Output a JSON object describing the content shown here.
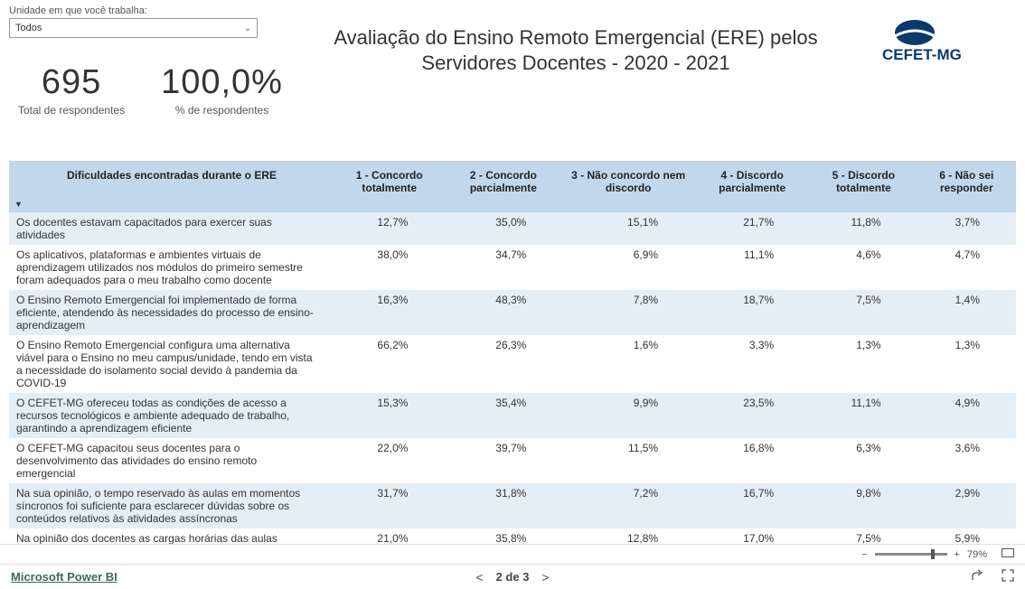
{
  "filter": {
    "label": "Unidade em que você trabalha:",
    "selected": "Todos"
  },
  "title": "Avaliação do Ensino Remoto Emergencial (ERE) pelos Servidores Docentes - 2020 - 2021",
  "logo_text": "CEFET-MG",
  "kpis": [
    {
      "value": "695",
      "label": "Total de respondentes"
    },
    {
      "value": "100,0%",
      "label": "% de respondentes"
    }
  ],
  "table": {
    "columns": [
      "Dificuldades encontradas durante o ERE",
      "1 - Concordo totalmente",
      "2 - Concordo parcialmente",
      "3 - Não concordo nem discordo",
      "4 - Discordo parcialmente",
      "5 - Discordo totalmente",
      "6 - Não sei responder"
    ],
    "rows": [
      {
        "q": "Os docentes estavam capacitados para exercer suas atividades",
        "v": [
          "12,7%",
          "35,0%",
          "15,1%",
          "21,7%",
          "11,8%",
          "3,7%"
        ]
      },
      {
        "q": "Os aplicativos, plataformas e ambientes virtuais de aprendizagem utilizados nos módulos do primeiro semestre foram adequados para o meu trabalho como docente",
        "v": [
          "38,0%",
          "34,7%",
          "6,9%",
          "11,1%",
          "4,6%",
          "4,7%"
        ]
      },
      {
        "q": "O Ensino Remoto Emergencial foi implementado de forma eficiente, atendendo às necessidades do processo de ensino-aprendizagem",
        "v": [
          "16,3%",
          "48,3%",
          "7,8%",
          "18,7%",
          "7,5%",
          "1,4%"
        ]
      },
      {
        "q": "O Ensino Remoto Emergencial configura uma alternativa viável para o Ensino no meu campus/unidade, tendo em vista a necessidade do isolamento social devido à pandemia da COVID-19",
        "v": [
          "66,2%",
          "26,3%",
          "1,6%",
          "3,3%",
          "1,3%",
          "1,3%"
        ]
      },
      {
        "q": "O CEFET-MG ofereceu todas as condições de acesso a recursos tecnológicos e ambiente adequado de trabalho, garantindo a aprendizagem eficiente",
        "v": [
          "15,3%",
          "35,4%",
          "9,9%",
          "23,5%",
          "11,1%",
          "4,9%"
        ]
      },
      {
        "q": "O CEFET-MG capacitou seus docentes para o desenvolvimento das atividades do ensino remoto emergencial",
        "v": [
          "22,0%",
          "39,7%",
          "11,5%",
          "16,8%",
          "6,3%",
          "3,6%"
        ]
      },
      {
        "q": "Na sua opinião, o tempo reservado às aulas em momentos síncronos foi suficiente para esclarecer dúvidas sobre os conteúdos relativos às atividades assíncronas",
        "v": [
          "31,7%",
          "31,8%",
          "7,2%",
          "16,7%",
          "9,8%",
          "2,9%"
        ]
      },
      {
        "q": "Na opinião dos docentes as cargas horárias das aulas síncronas e assíncronas estabelecidas nos módulos contribuiu para atingir os",
        "v": [
          "21,0%",
          "35,8%",
          "12,8%",
          "17,0%",
          "7,5%",
          "5,9%"
        ]
      }
    ]
  },
  "zoom": {
    "minus": "−",
    "plus": "+",
    "value": "79%"
  },
  "footer": {
    "brand": "Microsoft Power BI",
    "page_label": "2 de 3"
  },
  "colors": {
    "header_row": "#c1d8ec",
    "alt_row": "#e4eef7",
    "brand_link": "#3b6b57"
  }
}
